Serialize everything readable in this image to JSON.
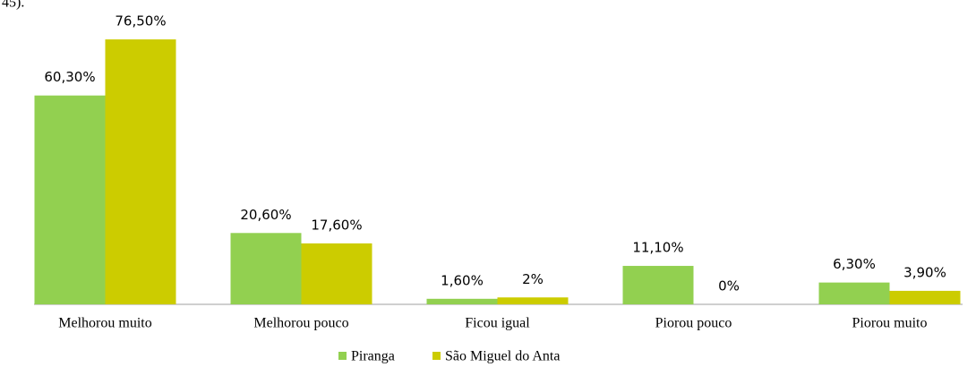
{
  "note": "45).",
  "chart_data": {
    "type": "bar",
    "categories": [
      "Melhorou muito",
      "Melhorou pouco",
      "Ficou igual",
      "Piorou pouco",
      "Piorou muito"
    ],
    "series": [
      {
        "name": "Piranga",
        "color": "#92d050",
        "values": [
          60.3,
          20.6,
          1.6,
          11.1,
          6.3
        ],
        "value_labels": [
          "60,30%",
          "20,60%",
          "1,60%",
          "11,10%",
          "6,30%"
        ]
      },
      {
        "name": "São Miguel do Anta",
        "color": "#cccc00",
        "values": [
          76.5,
          17.6,
          2,
          0,
          3.9
        ],
        "value_labels": [
          "76,50%",
          "17,60%",
          "2%",
          "0%",
          "3,90%"
        ]
      }
    ],
    "legend": "bottom"
  }
}
